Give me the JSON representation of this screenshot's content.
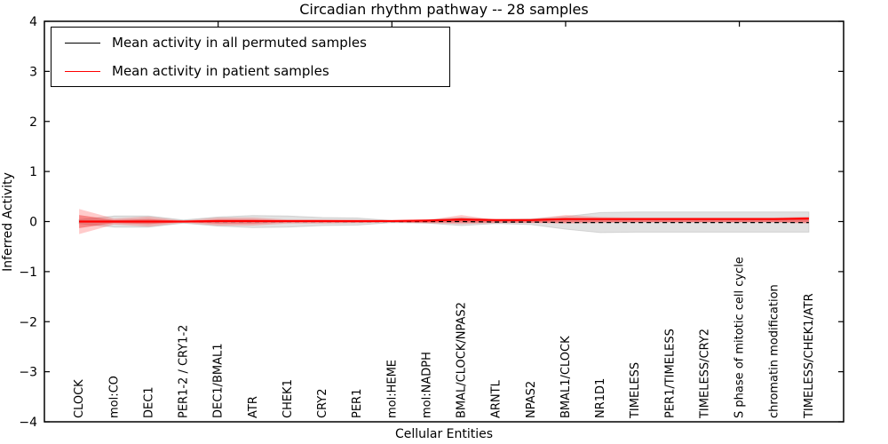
{
  "figure": {
    "title": "Circadian rhythm pathway -- 28 samples",
    "xlabel": "Cellular Entities",
    "ylabel": "Inferred Activity"
  },
  "legend": {
    "entries": [
      {
        "label": "Mean activity in all permuted samples",
        "color": "#000000"
      },
      {
        "label": "Mean activity in patient samples",
        "color": "#ff0000"
      }
    ]
  },
  "chart_data": {
    "type": "line",
    "title": "Circadian rhythm pathway -- 28 samples",
    "xlabel": "Cellular Entities",
    "ylabel": "Inferred Activity",
    "ylim": [
      -4,
      4
    ],
    "xlim": [
      0,
      23
    ],
    "grid": false,
    "legend_position": "upper left",
    "ytick_values": [
      4,
      3,
      2,
      1,
      0,
      -1,
      -2,
      -3,
      -4
    ],
    "ytick_labels": [
      "4",
      "3",
      "2",
      "1",
      "0",
      "−1",
      "−2",
      "−3",
      "−4"
    ],
    "top_xtick_values": [
      5,
      10,
      15,
      20
    ],
    "categories": [
      "CLOCK",
      "mol:CO",
      "DEC1",
      "PER1-2 / CRY1-2",
      "DEC1/BMAL1",
      "ATR",
      "CHEK1",
      "CRY2",
      "PER1",
      "mol:HEME",
      "mol:NADPH",
      "BMAL/CLOCK/NPAS2",
      "ARNTL",
      "NPAS2",
      "BMAL1/CLOCK",
      "NR1D1",
      "TIMELESS",
      "PER1/TIMELESS",
      "TIMELESS/CRY2",
      "S phase of mitotic cell cycle",
      "chromatin modification",
      "TIMELESS/CHEK1/ATR"
    ],
    "series": [
      {
        "name": "Mean activity in all permuted samples",
        "color": "#000000",
        "style": "dashed",
        "values": [
          0,
          0,
          0,
          0,
          0,
          0,
          0,
          0,
          0,
          0,
          0,
          0,
          -0.01,
          -0.01,
          -0.02,
          -0.02,
          -0.02,
          -0.02,
          -0.02,
          -0.02,
          -0.02,
          -0.02
        ]
      },
      {
        "name": "Mean activity in patient samples",
        "color": "#ff0000",
        "style": "solid",
        "values": [
          0,
          0,
          0,
          0,
          0.01,
          0.01,
          0.01,
          0.01,
          0.01,
          0.01,
          0.02,
          0.04,
          0.03,
          0.03,
          0.05,
          0.05,
          0.05,
          0.05,
          0.05,
          0.05,
          0.05,
          0.06
        ]
      }
    ],
    "bands": [
      {
        "name": "permuted-envelope",
        "color": "#c9c9c9",
        "opacity": 0.55,
        "stroke": "#c0c0c0",
        "upper": [
          0.04,
          0.11,
          0.11,
          0.03,
          0.09,
          0.12,
          0.11,
          0.08,
          0.07,
          0.02,
          0.03,
          0.08,
          0.04,
          0.05,
          0.1,
          0.18,
          0.19,
          0.19,
          0.19,
          0.19,
          0.19,
          0.19
        ],
        "lower": [
          -0.04,
          -0.11,
          -0.11,
          -0.03,
          -0.09,
          -0.12,
          -0.11,
          -0.08,
          -0.07,
          -0.02,
          -0.03,
          -0.08,
          -0.04,
          -0.06,
          -0.15,
          -0.22,
          -0.21,
          -0.21,
          -0.21,
          -0.21,
          -0.21,
          -0.21
        ]
      },
      {
        "name": "patient-envelope-outer",
        "color": "#ff3030",
        "opacity": 0.25,
        "stroke": "none",
        "upper": [
          0.25,
          0.06,
          0.1,
          0.02,
          0.08,
          0.08,
          0.04,
          0.04,
          0.03,
          0.02,
          0.03,
          0.13,
          0.03,
          0.05,
          0.13,
          0.09,
          0.08,
          0.08,
          0.08,
          0.08,
          0.08,
          0.1
        ],
        "lower": [
          -0.25,
          -0.06,
          -0.1,
          -0.02,
          -0.08,
          -0.08,
          -0.04,
          -0.04,
          -0.03,
          -0.02,
          -0.03,
          -0.05,
          -0.03,
          -0.03,
          -0.04,
          -0.03,
          -0.02,
          -0.02,
          -0.02,
          -0.02,
          -0.02,
          -0.04
        ]
      },
      {
        "name": "patient-envelope-inner",
        "color": "#f03030",
        "opacity": 0.45,
        "stroke": "none",
        "upper": [
          0.13,
          0.03,
          0.05,
          0.01,
          0.04,
          0.04,
          0.02,
          0.02,
          0.02,
          0.01,
          0.02,
          0.07,
          0.02,
          0.03,
          0.07,
          0.05,
          0.04,
          0.04,
          0.04,
          0.04,
          0.04,
          0.05
        ],
        "lower": [
          -0.13,
          -0.03,
          -0.05,
          -0.01,
          -0.04,
          -0.04,
          -0.02,
          -0.02,
          -0.02,
          -0.01,
          -0.02,
          -0.02,
          -0.02,
          -0.02,
          -0.02,
          -0.01,
          -0.01,
          -0.01,
          -0.01,
          -0.01,
          -0.01,
          -0.02
        ]
      }
    ]
  }
}
